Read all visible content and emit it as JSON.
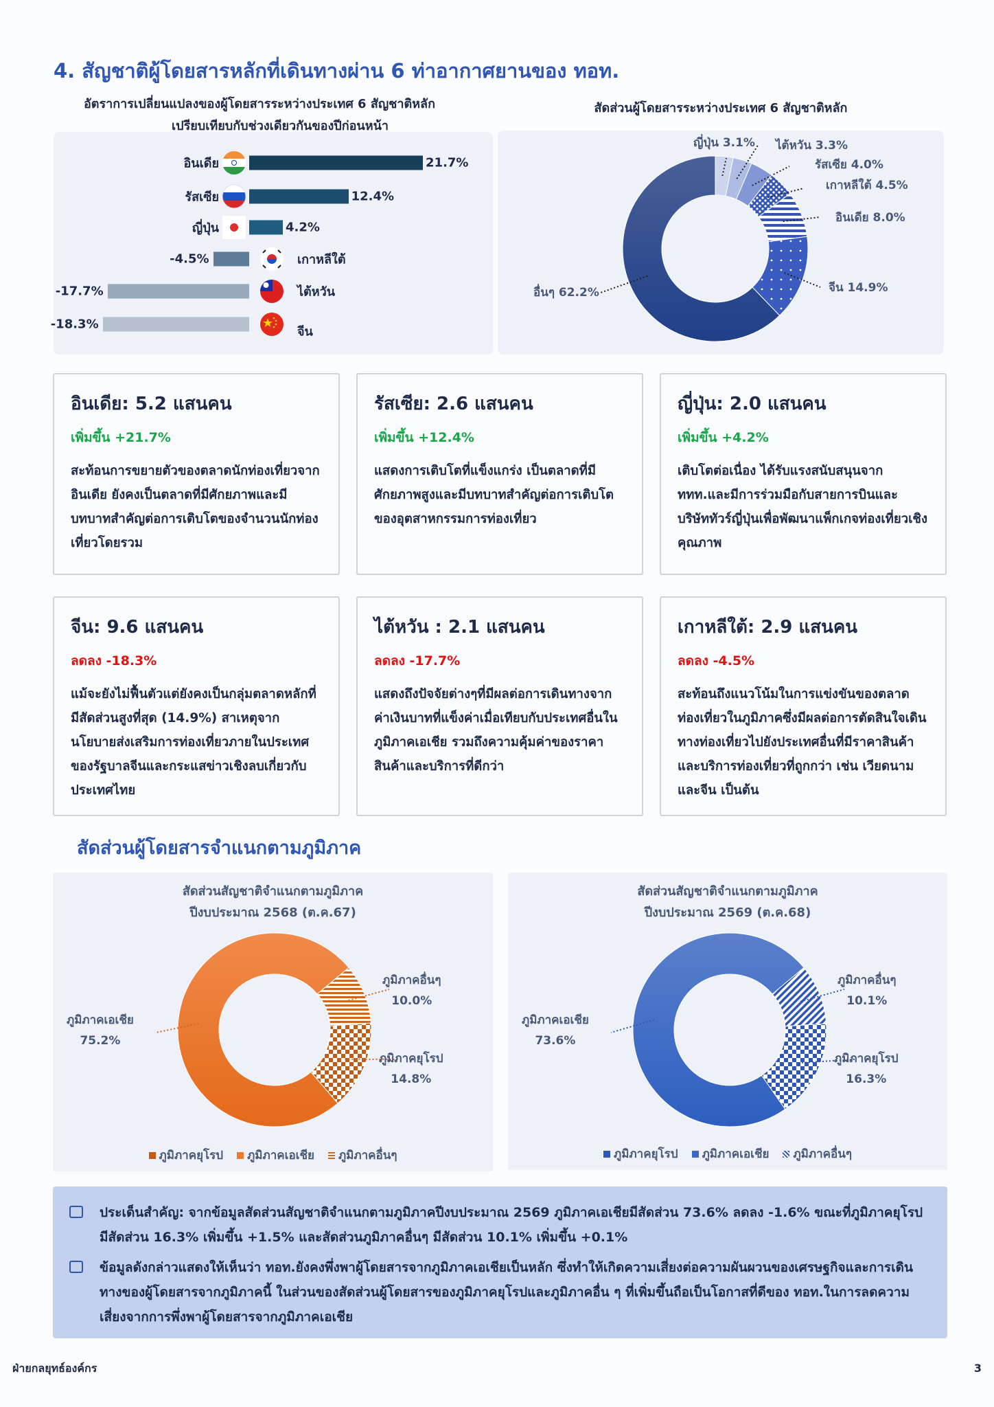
{
  "title": "4. สัญชาติผู้โดยสารหลักที่เดินทางผ่าน 6 ท่าอากาศยานของ ทอท.",
  "bar_chart": {
    "title_line1": "อัตราการเปลี่ยนแปลงของผู้โดยสารระหว่างประเทศ 6 สัญชาติหลัก",
    "title_line2": "เปรียบเทียบกับช่วงเดียวกันของปีก่อนหน้า",
    "rows": [
      {
        "label": "อินเดีย",
        "value": 21.7,
        "value_label": "21.7%",
        "flag": "india-flag-icon",
        "color": "#163f5a"
      },
      {
        "label": "รัสเซีย",
        "value": 12.4,
        "value_label": "12.4%",
        "flag": "russia-flag-icon",
        "color": "#1b4e6e"
      },
      {
        "label": "ญี่ปุ่น",
        "value": 4.2,
        "value_label": "4.2%",
        "flag": "japan-flag-icon",
        "color": "#1f5d80"
      },
      {
        "label": "เกาหลีใต้",
        "value": -4.5,
        "value_label": "-4.5%",
        "flag": "korea-flag-icon",
        "color": "#5f7d98"
      },
      {
        "label": "ไต้หวัน",
        "value": -17.7,
        "value_label": "-17.7%",
        "flag": "taiwan-flag-icon",
        "color": "#98a9bb"
      },
      {
        "label": "จีน",
        "value": -18.3,
        "value_label": "-18.3%",
        "flag": "china-flag-icon",
        "color": "#b6c0cc"
      }
    ]
  },
  "chart_data": [
    {
      "type": "bar",
      "orientation": "horizontal",
      "categories": [
        "อินเดีย",
        "รัสเซีย",
        "ญี่ปุ่น",
        "เกาหลีใต้",
        "ไต้หวัน",
        "จีน"
      ],
      "values": [
        21.7,
        12.4,
        4.2,
        -4.5,
        -17.7,
        -18.3
      ],
      "unit": "%"
    },
    {
      "type": "pie",
      "donut": true,
      "title": "สัดส่วนผู้โดยสารระหว่างประเทศ 6 สัญชาติหลัก",
      "slices": [
        {
          "label": "ญี่ปุ่น",
          "value": 3.1,
          "text": "ญี่ปุ่น  3.1%",
          "color": "#cdd4ee",
          "pattern": "solid"
        },
        {
          "label": "ไต้หวัน",
          "value": 3.3,
          "text": "ไต้หวัน  3.3%",
          "color": "#aebbe4",
          "pattern": "solid"
        },
        {
          "label": "รัสเซีย",
          "value": 4.0,
          "text": "รัสเซีย 4.0%",
          "color": "#8396d6",
          "pattern": "solid"
        },
        {
          "label": "เกาหลีใต้",
          "value": 4.5,
          "text": "เกาหลีใต้ 4.5%",
          "color": "#3656b5",
          "pattern": "diamond-dots"
        },
        {
          "label": "อินเดีย",
          "value": 8.0,
          "text": "อินเดีย 8.0%",
          "color": "#3656b5",
          "pattern": "horizontal-stripes"
        },
        {
          "label": "จีน",
          "value": 14.9,
          "text": "จีน  14.9%",
          "color": "#3a5bc0",
          "pattern": "dots"
        },
        {
          "label": "อื่นๆ",
          "value": 62.2,
          "text": "อื่นๆ 62.2%",
          "color": "#2b4a92",
          "pattern": "solid"
        }
      ]
    },
    {
      "type": "pie",
      "donut": true,
      "title": "สัดส่วนสัญชาติจำแนกตามภูมิภาค",
      "subtitle": "ปีงบประมาณ 2568 (ต.ค.67)",
      "slices": [
        {
          "label": "ภูมิภาคอื่นๆ",
          "value": 10.0,
          "text": "10.0%",
          "color": "#d0651c",
          "pattern": "horizontal-stripes"
        },
        {
          "label": "ภูมิภาคยุโรป",
          "value": 14.8,
          "text": "14.8%",
          "color": "#c55a12",
          "pattern": "checker"
        },
        {
          "label": "ภูมิภาคเอเชีย",
          "value": 75.2,
          "text": "75.2%",
          "color": "#ee7a2c",
          "pattern": "solid"
        }
      ],
      "legend": [
        "ภูมิภาคยุโรป",
        "ภูมิภาคเอเชีย",
        "ภูมิภาคอื่นๆ"
      ]
    },
    {
      "type": "pie",
      "donut": true,
      "title": "สัดส่วนสัญชาติจำแนกตามภูมิภาค",
      "subtitle": "ปีงบประมาณ 2569 (ต.ค.68)",
      "slices": [
        {
          "label": "ภูมิภาคอื่นๆ",
          "value": 10.1,
          "text": "10.1%",
          "color": "#2e55b8",
          "pattern": "diagonal-stripes"
        },
        {
          "label": "ภูมิภาคยุโรป",
          "value": 16.3,
          "text": "16.3%",
          "color": "#2e55b8",
          "pattern": "checker"
        },
        {
          "label": "ภูมิภาคเอเชีย",
          "value": 73.6,
          "text": "73.6%",
          "color": "#3e68c8",
          "pattern": "solid"
        }
      ],
      "legend": [
        "ภูมิภาคยุโรป",
        "ภูมิภาคเอเชีย",
        "ภูมิภาคอื่นๆ"
      ]
    }
  ],
  "cards": [
    {
      "title": "อินเดีย: 5.2 แสนคน",
      "change": "เพิ่มขึ้น +21.7%",
      "trend": "up",
      "body": "สะท้อนการขยายตัวของตลาดนักท่องเที่ยวจากอินเดีย ยังคงเป็นตลาดที่มีศักยภาพและมีบทบาทสำคัญต่อการเติบโตของจำนวนนักท่องเที่ยวโดยรวม"
    },
    {
      "title": "รัสเซีย: 2.6 แสนคน",
      "change": "เพิ่มขึ้น +12.4%",
      "trend": "up",
      "body": "แสดงการเติบโตที่แข็งแกร่ง เป็นตลาดที่มีศักยภาพสูงและมีบทบาทสำคัญต่อการเติบโตของอุตสาหกรรมการท่องเที่ยว"
    },
    {
      "title": "ญี่ปุ่น: 2.0 แสนคน",
      "change": "เพิ่มขึ้น +4.2%",
      "trend": "up",
      "body": "เติบโตต่อเนื่อง ได้รับแรงสนับสนุนจาก ททท.และมีการร่วมมือกับสายการบินและบริษัททัวร์ญี่ปุ่นเพื่อพัฒนาแพ็กเกจท่องเที่ยวเชิงคุณภาพ"
    },
    {
      "title": "จีน: 9.6 แสนคน",
      "change": "ลดลง -18.3%",
      "trend": "down",
      "body": "แม้จะยังไม่ฟื้นตัวแต่ยังคงเป็นกลุ่มตลาดหลักที่มีสัดส่วนสูงที่สุด (14.9%) สาเหตุจากนโยบายส่งเสริมการท่องเที่ยวภายในประเทศของรัฐบาลจีนและกระแสข่าวเชิงลบเกี่ยวกับประเทศไทย"
    },
    {
      "title": "ไต้หวัน : 2.1 แสนคน",
      "change": "ลดลง -17.7%",
      "trend": "down",
      "body": "แสดงถึงปัจจัยต่างๆที่มีผลต่อการเดินทางจากค่าเงินบาทที่แข็งค่าเมื่อเทียบกับประเทศอื่นในภูมิภาคเอเชีย รวมถึงความคุ้มค่าของราคาสินค้าและบริการที่ดีกว่า"
    },
    {
      "title": "เกาหลีใต้: 2.9 แสนคน",
      "change": "ลดลง -4.5%",
      "trend": "down",
      "body": "สะท้อนถึงแนวโน้มในการแข่งขันของตลาดท่องเที่ยวในภูมิภาคซึ่งมีผลต่อการตัดสินใจเดินทางท่องเที่ยวไปยังประเทศอื่นที่มีราคาสินค้าและบริการท่องเที่ยวที่ถูกกว่า เช่น เวียดนามและจีน เป็นต้น"
    }
  ],
  "section2_title": "สัดส่วนผู้โดยสารจำแนกตามภูมิภาค",
  "summary": [
    "ประเด็นสำคัญ: จากข้อมูลสัดส่วนสัญชาติจำแนกตามภูมิภาคปีงบประมาณ 2569 ภูมิภาคเอเชียมีสัดส่วน 73.6% ลดลง -1.6% ขณะที่ภูมิภาคยุโรปมีสัดส่วน 16.3% เพิ่มขึ้น +1.5% และสัดส่วนภูมิภาคอื่นๆ มีสัดส่วน 10.1% เพิ่มขึ้น +0.1%",
    "ข้อมูลดังกล่าวแสดงให้เห็นว่า ทอท.ยังคงพึ่งพาผู้โดยสารจากภูมิภาคเอเชียเป็นหลัก ซึ่งทำให้เกิดความเสี่ยงต่อความผันผวนของเศรษฐกิจและการเดินทางของผู้โดยสารจากภูมิภาคนี้  ในส่วนของสัดส่วนผู้โดยสารของภูมิภาคยุโรปและภูมิภาคอื่น ๆ ที่เพิ่มขึ้นถือเป็นโอกาสที่ดีของ ทอท.ในการลดความเสี่ยงจากการพึ่งพาผู้โดยสารจากภูมิภาคเอเชีย"
  ],
  "footer": {
    "department": "ฝ่ายกลยุทธ์องค์กร",
    "page_number": "3"
  }
}
